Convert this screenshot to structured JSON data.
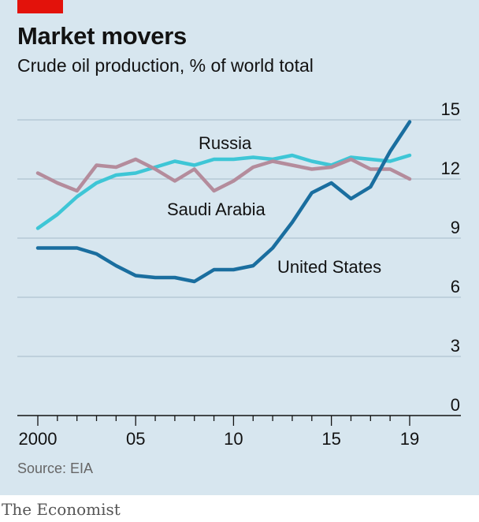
{
  "header": {
    "title": "Market movers",
    "subtitle": "Crude oil production, % of world total"
  },
  "footer": {
    "source": "Source: EIA",
    "brand": "The Economist"
  },
  "colors": {
    "background": "#d7e6ef",
    "accent_tag": "#e3120b",
    "united_states": "#1a6e9f",
    "russia": "#3ec6d6",
    "saudi_arabia": "#b48c9c",
    "gridline": "#aec3d0"
  },
  "chart_data": {
    "type": "line",
    "title": "Market movers",
    "subtitle": "Crude oil production, % of world total",
    "x": [
      2000,
      2001,
      2002,
      2003,
      2004,
      2005,
      2006,
      2007,
      2008,
      2009,
      2010,
      2011,
      2012,
      2013,
      2014,
      2015,
      2016,
      2017,
      2018,
      2019
    ],
    "x_tick_values": [
      2000,
      2005,
      2010,
      2015,
      2019
    ],
    "x_tick_labels": [
      "2000",
      "05",
      "10",
      "15",
      "19"
    ],
    "y_ticks": [
      0,
      3,
      6,
      9,
      12,
      15
    ],
    "ylim": [
      0,
      15
    ],
    "y_axis_position": "right",
    "grid": true,
    "series": [
      {
        "name": "Russia",
        "values": [
          9.5,
          10.2,
          11.1,
          11.8,
          12.2,
          12.3,
          12.6,
          12.9,
          12.7,
          13.0,
          13.0,
          13.1,
          13.0,
          13.2,
          12.9,
          12.7,
          13.1,
          13.0,
          12.9,
          13.2
        ]
      },
      {
        "name": "Saudi Arabia",
        "values": [
          12.3,
          11.8,
          11.4,
          12.7,
          12.6,
          13.0,
          12.5,
          11.9,
          12.5,
          11.4,
          11.9,
          12.6,
          12.9,
          12.7,
          12.5,
          12.6,
          13.0,
          12.5,
          12.5,
          12.0
        ]
      },
      {
        "name": "United States",
        "values": [
          8.5,
          8.5,
          8.5,
          8.2,
          7.6,
          7.1,
          7.0,
          7.0,
          6.8,
          7.4,
          7.4,
          7.6,
          8.5,
          9.8,
          11.3,
          11.8,
          11.0,
          11.6,
          13.4,
          14.9
        ]
      }
    ],
    "series_labels": [
      "Russia",
      "Saudi Arabia",
      "United States"
    ]
  }
}
